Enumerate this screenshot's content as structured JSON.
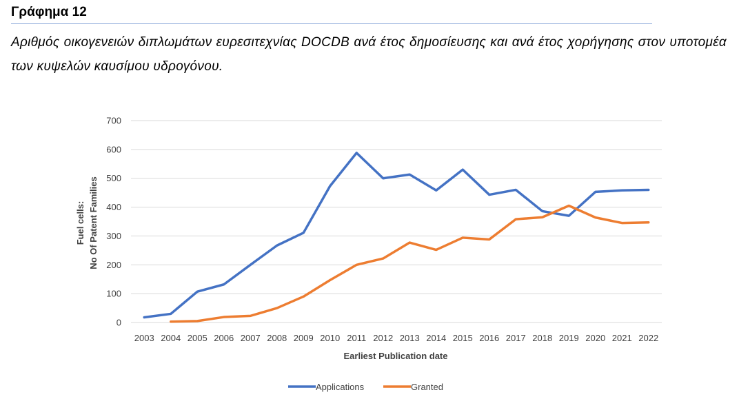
{
  "document": {
    "heading": "Γράφημα 12",
    "caption": "Αριθμός οικογενειών διπλωμάτων ευρεσιτεχνίας DOCDB ανά έτος δημοσίευσης και ανά έτος χορήγησης στον υποτομέα των κυψελών καυσίμου υδρογόνου."
  },
  "chart_data": {
    "type": "line",
    "title": "",
    "xlabel": "Earliest Publication date",
    "ylabel_line1": "Fuel cells:",
    "ylabel_line2": "No Of Patent Families",
    "ylim": [
      0,
      700
    ],
    "yticks": [
      0,
      100,
      200,
      300,
      400,
      500,
      600,
      700
    ],
    "grid": true,
    "legend_position": "bottom",
    "categories": [
      "2003",
      "2004",
      "2005",
      "2006",
      "2007",
      "2008",
      "2009",
      "2010",
      "2011",
      "2012",
      "2013",
      "2014",
      "2015",
      "2016",
      "2017",
      "2018",
      "2019",
      "2020",
      "2021",
      "2022"
    ],
    "series": [
      {
        "name": "Applications",
        "color": "#4472c4",
        "values": [
          18,
          30,
          107,
          132,
          200,
          267,
          311,
          473,
          588,
          500,
          513,
          458,
          530,
          443,
          460,
          386,
          370,
          453,
          458,
          460
        ]
      },
      {
        "name": "Granted",
        "color": "#ed7d31",
        "values": [
          null,
          3,
          5,
          19,
          23,
          50,
          90,
          147,
          200,
          222,
          277,
          252,
          294,
          288,
          358,
          365,
          405,
          364,
          345,
          347
        ]
      }
    ]
  }
}
